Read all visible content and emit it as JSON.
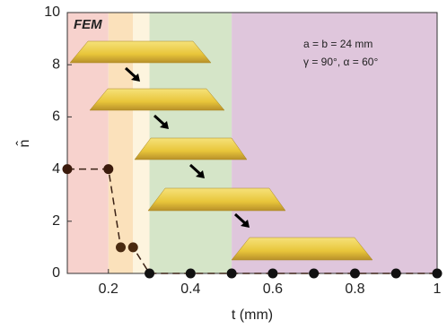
{
  "chart_data": {
    "type": "line",
    "x_label": "t (mm)",
    "y_label": "n̂",
    "x": [
      0.1,
      0.2,
      0.23,
      0.26,
      0.3,
      0.4,
      0.5,
      0.6,
      0.7,
      0.8,
      0.9,
      1
    ],
    "series": [
      {
        "name": "FEM",
        "color": "#3b2216",
        "dashed": true,
        "values": [
          4,
          4,
          1,
          1,
          0,
          0,
          0,
          0,
          0,
          0,
          0,
          0
        ],
        "point_colors": [
          "#3b1a0c",
          "#3b1a0c",
          "#4a2a10",
          "#4a2a10",
          "#111111",
          "#111111",
          "#111111",
          "#111111",
          "#111111",
          "#111111",
          "#111111",
          "#111111"
        ]
      }
    ],
    "regions": [
      {
        "from": 0.1,
        "to": 0.2,
        "color": "#f7d2cd"
      },
      {
        "from": 0.2,
        "to": 0.26,
        "color": "#fbe1bb"
      },
      {
        "from": 0.26,
        "to": 0.3,
        "color": "#fdf4de"
      },
      {
        "from": 0.3,
        "to": 0.5,
        "color": "#d5e5c8"
      },
      {
        "from": 0.5,
        "to": 1,
        "color": "#dfc6dc"
      }
    ],
    "xlim": [
      0.1,
      1
    ],
    "xticks": [
      0.2,
      0.4,
      0.6,
      0.8,
      1
    ],
    "ylim": [
      0,
      10
    ],
    "yticks": [
      0,
      2,
      4,
      6,
      8,
      10
    ],
    "annotations": [
      "FEM",
      "a = b = 24 mm",
      "γ = 90°, α = 60°"
    ]
  }
}
